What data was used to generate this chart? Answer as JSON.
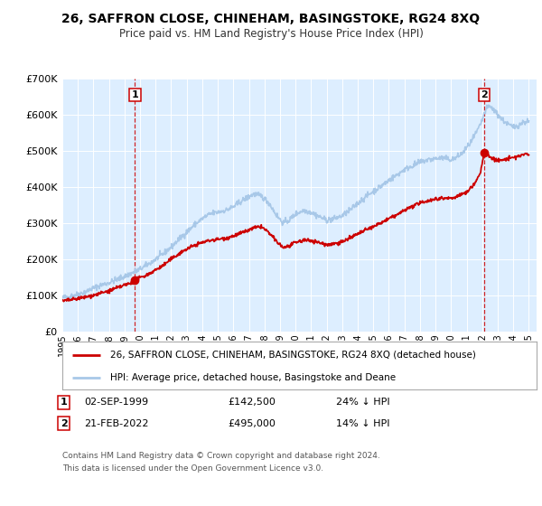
{
  "title": "26, SAFFRON CLOSE, CHINEHAM, BASINGSTOKE, RG24 8XQ",
  "subtitle": "Price paid vs. HM Land Registry's House Price Index (HPI)",
  "legend_line1": "26, SAFFRON CLOSE, CHINEHAM, BASINGSTOKE, RG24 8XQ (detached house)",
  "legend_line2": "HPI: Average price, detached house, Basingstoke and Deane",
  "footnote1": "Contains HM Land Registry data © Crown copyright and database right 2024.",
  "footnote2": "This data is licensed under the Open Government Licence v3.0.",
  "marker1_date": "02-SEP-1999",
  "marker1_price": 142500,
  "marker1_label": "24% ↓ HPI",
  "marker1_x": 1999.67,
  "marker2_date": "21-FEB-2022",
  "marker2_price": 495000,
  "marker2_label": "14% ↓ HPI",
  "marker2_x": 2022.13,
  "hpi_color": "#a8c8e8",
  "price_color": "#cc0000",
  "marker_color": "#cc0000",
  "plot_bg_color": "#ddeeff",
  "grid_color": "#ffffff",
  "ylim": [
    0,
    700000
  ],
  "yticks": [
    0,
    100000,
    200000,
    300000,
    400000,
    500000,
    600000,
    700000
  ],
  "xlim_start": 1995.0,
  "xlim_end": 2025.5,
  "xlabel_years": [
    1995,
    1996,
    1997,
    1998,
    1999,
    2000,
    2001,
    2002,
    2003,
    2004,
    2005,
    2006,
    2007,
    2008,
    2009,
    2010,
    2011,
    2012,
    2013,
    2014,
    2015,
    2016,
    2017,
    2018,
    2019,
    2020,
    2021,
    2022,
    2023,
    2024,
    2025
  ]
}
